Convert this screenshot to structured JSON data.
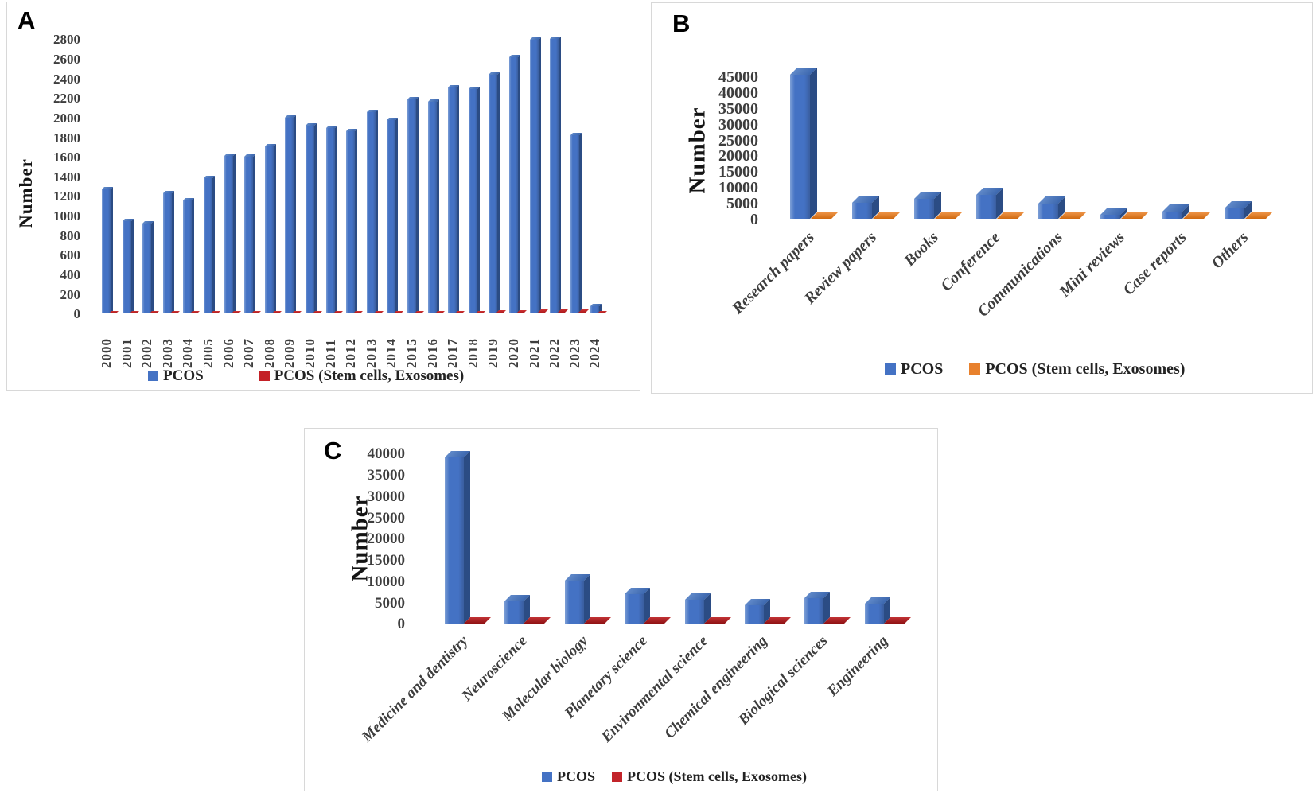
{
  "figure": {
    "background": "#ffffff",
    "series_colors": {
      "pcos_blue": "#4472C4",
      "stem_red": "#C42127",
      "stem_orange": "#E8812D",
      "stem_dark_red": "#C2242A"
    }
  },
  "chart_data": [
    {
      "panel_label": "A",
      "type": "bar",
      "title": "",
      "xlabel": "",
      "ylabel": "Number",
      "ylim": [
        0,
        2800
      ],
      "ytick_step": 200,
      "grid": false,
      "legend_position": "bottom",
      "categories": [
        "2000",
        "2001",
        "2002",
        "2003",
        "2004",
        "2005",
        "2006",
        "2007",
        "2008",
        "2009",
        "2010",
        "2011",
        "2012",
        "2013",
        "2014",
        "2015",
        "2016",
        "2017",
        "2018",
        "2019",
        "2020",
        "2021",
        "2022",
        "2023",
        "2024"
      ],
      "series": [
        {
          "name": "PCOS",
          "color": "#4472C4",
          "values": [
            1270,
            945,
            915,
            1225,
            1150,
            1380,
            1610,
            1595,
            1705,
            2000,
            1915,
            1895,
            1860,
            2050,
            1970,
            2185,
            2155,
            2305,
            2290,
            2435,
            2610,
            2790,
            2800,
            1820,
            70
          ]
        },
        {
          "name": "PCOS (Stem cells, Exosomes)",
          "color": "#C42127",
          "values": [
            5,
            5,
            5,
            6,
            6,
            8,
            8,
            10,
            10,
            12,
            12,
            14,
            15,
            16,
            18,
            20,
            22,
            25,
            28,
            32,
            36,
            40,
            45,
            42,
            10
          ]
        }
      ]
    },
    {
      "panel_label": "B",
      "type": "bar",
      "title": "",
      "xlabel": "",
      "ylabel": "Number",
      "ylim": [
        0,
        45000
      ],
      "ytick_step": 5000,
      "grid": false,
      "legend_position": "bottom",
      "categories": [
        "Research papers",
        "Review papers",
        "Books",
        "Conference",
        "Communications",
        "Mini reviews",
        "Case reports",
        "Others"
      ],
      "series": [
        {
          "name": "PCOS",
          "color": "#4472C4",
          "values": [
            45500,
            5000,
            6200,
            7600,
            4800,
            1300,
            2200,
            3200
          ]
        },
        {
          "name": "PCOS (Stem cells, Exosomes)",
          "color": "#E8812D",
          "values": [
            300,
            250,
            220,
            260,
            210,
            140,
            160,
            190
          ]
        }
      ]
    },
    {
      "panel_label": "C",
      "type": "bar",
      "title": "",
      "xlabel": "",
      "ylabel": "Number",
      "ylim": [
        0,
        40000
      ],
      "ytick_step": 5000,
      "grid": false,
      "legend_position": "bottom",
      "categories": [
        "Medicine and dentistry",
        "Neuroscience",
        "Molecular biology",
        "Planetary science",
        "Environmental science",
        "Chemical engineering",
        "Biological sciences",
        "Engineering"
      ],
      "series": [
        {
          "name": "PCOS",
          "color": "#4472C4",
          "values": [
            39000,
            5200,
            10000,
            7000,
            5600,
            4300,
            6000,
            4700
          ]
        },
        {
          "name": "PCOS (Stem cells, Exosomes)",
          "color": "#C2242A",
          "values": [
            420,
            300,
            380,
            320,
            300,
            260,
            310,
            270
          ]
        }
      ]
    }
  ]
}
